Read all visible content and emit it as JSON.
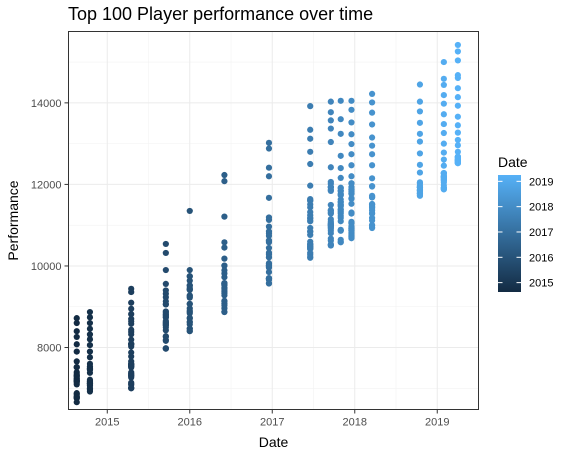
{
  "chart_data": {
    "type": "scatter",
    "title": "Top 100 Player performance over time",
    "xlabel": "Date",
    "ylabel": "Performance",
    "xlim": [
      2014.53,
      2019.5
    ],
    "ylim": [
      6480,
      15750
    ],
    "x_ticks": [
      2015,
      2016,
      2017,
      2018,
      2019
    ],
    "x_tick_labels": [
      "2015",
      "2016",
      "2017",
      "2018",
      "2019"
    ],
    "y_ticks": [
      8000,
      10000,
      12000,
      14000
    ],
    "y_tick_labels": [
      "8000",
      "10000",
      "12000",
      "14000"
    ],
    "grid": true,
    "legend": {
      "title": "Date",
      "type": "colorbar",
      "placement": "right",
      "labels": [
        "2019",
        "2018",
        "2017",
        "2016",
        "2015"
      ],
      "values": [
        2019,
        2018,
        2017,
        2016,
        2015
      ],
      "range": [
        2014.63,
        2019.25
      ],
      "low_color": "#132B43",
      "high_color": "#56B1F7"
    },
    "groups": [
      {
        "x": 2014.63,
        "min": 6660,
        "max": 8720,
        "upper": [
          8720,
          8600,
          8400,
          8260,
          8080,
          7900,
          7660,
          7520
        ]
      },
      {
        "x": 2014.79,
        "min": 6920,
        "max": 8870,
        "upper": [
          8870,
          8740,
          8600,
          8460,
          8320,
          8200,
          8060,
          7900,
          7760,
          7600
        ]
      },
      {
        "x": 2015.29,
        "min": 7000,
        "max": 9440,
        "upper": [
          9440,
          9360,
          9100,
          8950,
          8820,
          8700
        ]
      },
      {
        "x": 2015.71,
        "min": 7970,
        "max": 10540,
        "upper": [
          10540,
          10320,
          9900,
          9560,
          9400
        ]
      },
      {
        "x": 2016.0,
        "min": 8400,
        "max": 11350,
        "upper": [
          11350,
          9900,
          9750
        ]
      },
      {
        "x": 2016.42,
        "min": 8870,
        "max": 12230,
        "upper": [
          12230,
          12080,
          11210,
          10580,
          10450,
          10180,
          10010
        ]
      },
      {
        "x": 2016.96,
        "min": 9570,
        "max": 13020,
        "upper": [
          13020,
          12880,
          12410,
          12200,
          11670,
          11190
        ]
      },
      {
        "x": 2017.46,
        "min": 10200,
        "max": 13920,
        "upper": [
          13920,
          13340,
          13120,
          12800,
          12500,
          11970,
          11640
        ]
      },
      {
        "x": 2017.71,
        "min": 10500,
        "max": 14030,
        "upper": [
          14030,
          13770,
          13570,
          13370,
          13040,
          12420,
          12060
        ]
      },
      {
        "x": 2017.83,
        "min": 10580,
        "max": 14050,
        "upper": [
          14050,
          13600,
          13240,
          12700,
          12400,
          12160,
          11920
        ]
      },
      {
        "x": 2017.96,
        "min": 10680,
        "max": 14050,
        "upper": [
          14050,
          13830,
          13520,
          13230,
          12990,
          12740,
          12470,
          12200
        ]
      },
      {
        "x": 2018.21,
        "min": 10930,
        "max": 14220,
        "upper": [
          14220,
          14010,
          13760,
          13470,
          13150,
          12950,
          12740,
          12470,
          12150,
          11960
        ]
      },
      {
        "x": 2018.79,
        "min": 11720,
        "max": 14450,
        "upper": [
          14450,
          14030,
          13790,
          13510,
          13240,
          13050,
          12760,
          12480,
          12290,
          12050
        ]
      },
      {
        "x": 2019.08,
        "min": 11880,
        "max": 15000,
        "upper": [
          15000,
          14590,
          14440,
          14190,
          13980,
          13720,
          13480,
          13260,
          13000,
          12780,
          12610,
          12460,
          12280
        ]
      },
      {
        "x": 2019.25,
        "min": 12520,
        "max": 15420,
        "upper": [
          15420,
          15260,
          15040,
          14680,
          14610,
          14360,
          14140,
          13930,
          13660,
          13450,
          13270,
          13090,
          12960,
          12800,
          12680
        ]
      }
    ]
  }
}
